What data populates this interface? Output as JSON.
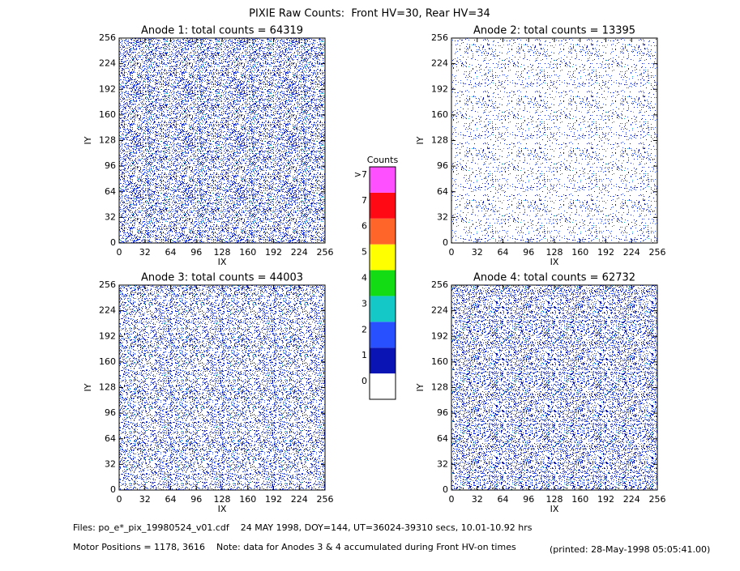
{
  "title": "PIXIE Raw Counts:  Front HV=30, Rear HV=34",
  "chart_data": [
    {
      "type": "heatmap",
      "title": "Anode 1: total counts = 64319",
      "xlabel": "IX",
      "ylabel": "IY",
      "xlim": [
        0,
        256
      ],
      "ylim": [
        0,
        256
      ],
      "xticks": [
        0,
        32,
        64,
        96,
        128,
        160,
        192,
        224,
        256
      ],
      "yticks": [
        0,
        32,
        64,
        96,
        128,
        160,
        192,
        224,
        256
      ]
    },
    {
      "type": "heatmap",
      "title": "Anode 2: total counts = 13395",
      "xlabel": "IX",
      "ylabel": "IY",
      "xlim": [
        0,
        256
      ],
      "ylim": [
        0,
        256
      ],
      "xticks": [
        0,
        32,
        64,
        96,
        128,
        160,
        192,
        224,
        256
      ],
      "yticks": [
        0,
        32,
        64,
        96,
        128,
        160,
        192,
        224,
        256
      ]
    },
    {
      "type": "heatmap",
      "title": "Anode 3: total counts = 44003",
      "xlabel": "IX",
      "ylabel": "IY",
      "xlim": [
        0,
        256
      ],
      "ylim": [
        0,
        256
      ],
      "xticks": [
        0,
        32,
        64,
        96,
        128,
        160,
        192,
        224,
        256
      ],
      "yticks": [
        0,
        32,
        64,
        96,
        128,
        160,
        192,
        224,
        256
      ]
    },
    {
      "type": "heatmap",
      "title": "Anode 4: total counts = 62732",
      "xlabel": "IX",
      "ylabel": "IY",
      "xlim": [
        0,
        256
      ],
      "ylim": [
        0,
        256
      ],
      "xticks": [
        0,
        32,
        64,
        96,
        128,
        160,
        192,
        224,
        256
      ],
      "yticks": [
        0,
        32,
        64,
        96,
        128,
        160,
        192,
        224,
        256
      ]
    }
  ],
  "colorbar": {
    "title": "Counts",
    "ticks": [
      0,
      1,
      2,
      3,
      4,
      5,
      6,
      7,
      {
        "value": 8,
        "label": ">7"
      }
    ],
    "colors": [
      "#ffffff",
      "#0a14b4",
      "#2850ff",
      "#14c8c8",
      "#14dc14",
      "#ffff00",
      "#ff6428",
      "#ff0a14",
      "#ff50ff"
    ]
  },
  "footer": {
    "files": "Files: po_e*_pix_19980524_v01.cdf    24 MAY 1998, DOY=144, UT=36024-39310 secs, 10.01-10.92 hrs",
    "motor": "Motor Positions = 1178, 3616    Note: data for Anodes 3 & 4 accumulated during Front HV-on times",
    "printed": "(printed: 28-May-1998 05:05:41.00)"
  }
}
